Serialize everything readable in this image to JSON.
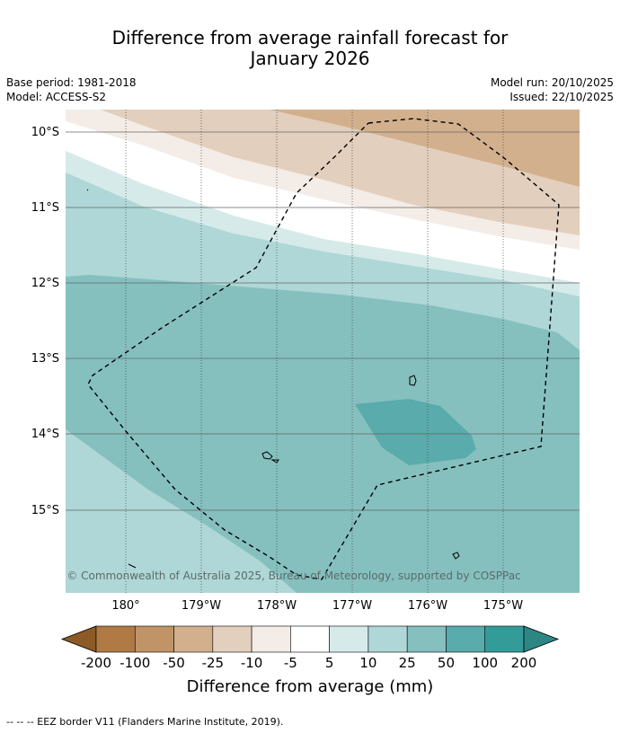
{
  "title_line1": "Difference from average rainfall forecast for",
  "title_line2": "January 2026",
  "base_period": "Base period: 1981-2018",
  "model": "Model: ACCESS-S2",
  "model_run": "Model run: 20/10/2025",
  "issued": "Issued: 22/10/2025",
  "lat_labels": [
    "10°S",
    "11°S",
    "12°S",
    "13°S",
    "14°S",
    "15°S"
  ],
  "lon_labels": [
    "180°",
    "179°W",
    "178°W",
    "177°W",
    "176°W",
    "175°W"
  ],
  "copyright": "© Commonwealth of Australia 2025, Bureau of Meteorology, supported by COSPPac",
  "legend": {
    "ticks": [
      "-200",
      "-100",
      "-50",
      "-25",
      "-10",
      "-5",
      "5",
      "10",
      "25",
      "50",
      "100",
      "200"
    ],
    "colors": [
      "#8c5a26",
      "#b07a44",
      "#c19467",
      "#d2b08e",
      "#e3cfbd",
      "#f4ece7",
      "#ffffff",
      "#d6eaea",
      "#afd7d7",
      "#85c0bf",
      "#5aabab",
      "#339c99",
      "#2c8784"
    ],
    "label": "Difference from average (mm)"
  },
  "footer": "--  --  -- EEZ border V11 (Flanders Marine Institute, 2019)."
}
